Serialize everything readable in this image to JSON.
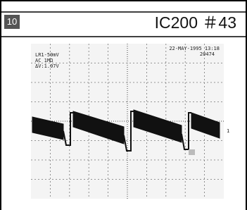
{
  "header": {
    "badge": "10",
    "title": "IC200 ＃43"
  },
  "scope": {
    "channel": "LR1-50mV",
    "coupling": "AC 1MΩ",
    "delta": "ΔV:1.07V",
    "timestamp": "22-MAY-1995 13:18",
    "counter": "20474",
    "marker": "1"
  }
}
